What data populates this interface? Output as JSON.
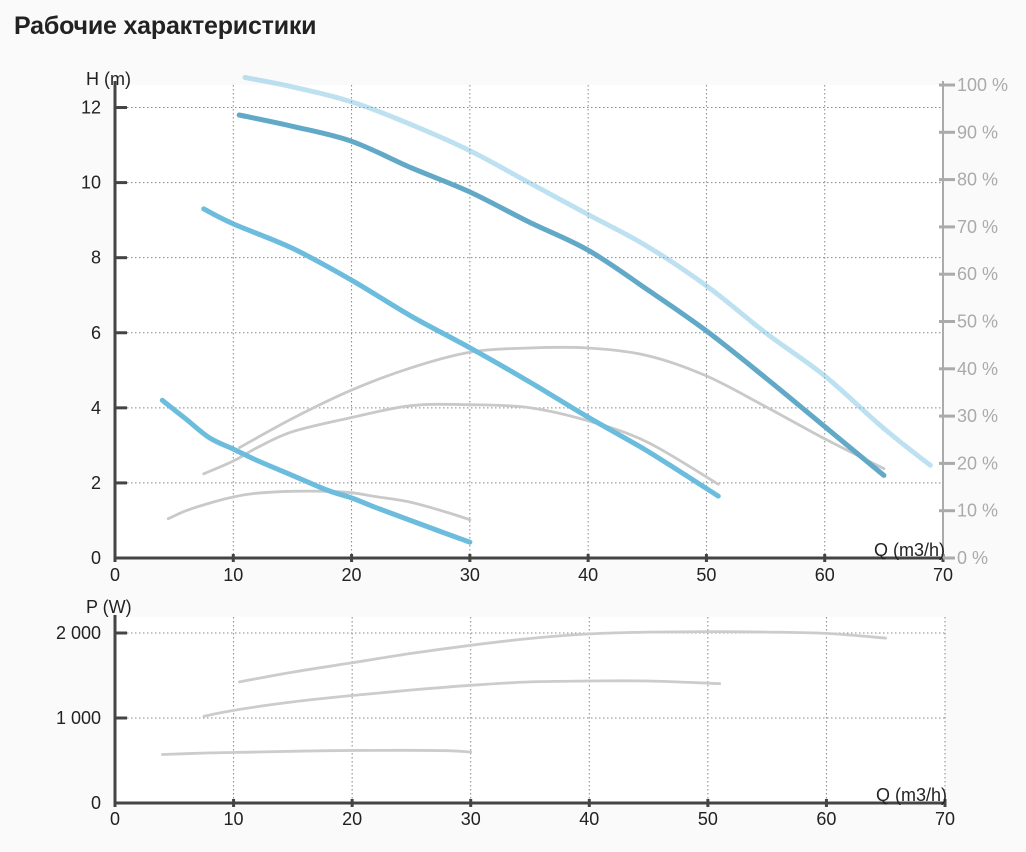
{
  "page": {
    "title": "Рабочие характеристики"
  },
  "colors": {
    "head_curve": "#6cbcdd",
    "head_curve_max": "#62a9c8",
    "efficiency_curve": "#c9c9c9",
    "power_curve": "#cccccc",
    "axis": "#444444",
    "efficiency_axis": "#aaaaaa"
  },
  "chart_data": [
    {
      "type": "line",
      "title": "",
      "xlabel": "Q (m3/h)",
      "ylabel": "H (m)",
      "y2label": "",
      "xlim": [
        0,
        70
      ],
      "ylim": [
        0,
        12.6
      ],
      "y2lim": [
        0,
        100
      ],
      "x_ticks": [
        "0",
        "10",
        "20",
        "30",
        "40",
        "50",
        "60",
        "70"
      ],
      "y_ticks": [
        "0",
        "2",
        "4",
        "6",
        "8",
        "10",
        "12"
      ],
      "y2_ticks": [
        "0 %",
        "10 %",
        "20 %",
        "30 %",
        "40 %",
        "50 %",
        "60 %",
        "70 %",
        "80 %",
        "90 %",
        "100 %"
      ],
      "grid": true,
      "head_series": [
        {
          "style": "head-curve-1",
          "x": [
            4,
            6,
            8,
            10,
            12,
            15,
            18,
            20,
            22,
            25,
            28,
            30
          ],
          "y": [
            4.2,
            3.7,
            3.2,
            2.9,
            2.6,
            2.2,
            1.8,
            1.6,
            1.35,
            1.0,
            0.65,
            0.42
          ]
        },
        {
          "style": "head-curve-2",
          "x": [
            7.5,
            10,
            15,
            20,
            25,
            30,
            35,
            40,
            45,
            51
          ],
          "y": [
            9.3,
            8.9,
            8.25,
            7.4,
            6.45,
            5.6,
            4.7,
            3.75,
            2.85,
            1.65
          ]
        },
        {
          "style": "head-curve-3",
          "x": [
            10.5,
            15,
            20,
            25,
            30,
            35,
            40,
            45,
            50,
            55,
            60,
            65
          ],
          "y": [
            11.8,
            11.5,
            11.1,
            10.4,
            9.75,
            8.95,
            8.2,
            7.15,
            6.05,
            4.8,
            3.5,
            2.2
          ]
        },
        {
          "style": "head-curve-max",
          "x": [
            11,
            15,
            20,
            25,
            30,
            35,
            40,
            45,
            50,
            55,
            60,
            65,
            69
          ],
          "y": [
            12.8,
            12.55,
            12.15,
            11.55,
            10.85,
            10.0,
            9.15,
            8.3,
            7.25,
            6.0,
            4.85,
            3.45,
            2.45
          ]
        }
      ],
      "efficiency_series": [
        {
          "style": "eff-curve-1",
          "x": [
            4.5,
            6,
            8,
            10,
            12,
            15,
            18,
            20,
            22,
            25,
            28,
            30
          ],
          "y": [
            8.3,
            10,
            11.6,
            12.9,
            13.7,
            14.1,
            14.1,
            13.8,
            13.0,
            11.8,
            9.7,
            8.1
          ]
        },
        {
          "style": "eff-curve-2",
          "x": [
            7.5,
            10,
            12,
            15,
            20,
            25,
            30,
            35,
            40,
            45,
            51
          ],
          "y": [
            17.8,
            20.5,
            23.3,
            26.7,
            29.7,
            32.2,
            32.4,
            31.8,
            29.0,
            24.5,
            15.6
          ]
        },
        {
          "style": "eff-curve-3",
          "x": [
            10.5,
            15,
            20,
            25,
            30,
            35,
            40,
            45,
            50,
            55,
            60,
            65
          ],
          "y": [
            23.3,
            29.5,
            35.5,
            40.2,
            43.5,
            44.4,
            44.4,
            42.8,
            38.5,
            32.0,
            25.2,
            18.9
          ]
        }
      ]
    },
    {
      "type": "line",
      "title": "",
      "xlabel": "Q (m3/h)",
      "ylabel": "P (W)",
      "xlim": [
        0,
        70
      ],
      "ylim": [
        0,
        2000
      ],
      "x_ticks": [
        "0",
        "10",
        "20",
        "30",
        "40",
        "50",
        "60",
        "70"
      ],
      "y_ticks": [
        "0",
        "1 000",
        "2 000"
      ],
      "grid": true,
      "series": [
        {
          "style": "power-curve-1",
          "x": [
            4,
            8,
            12,
            18,
            24,
            28,
            30
          ],
          "y": [
            570,
            590,
            600,
            615,
            620,
            615,
            600
          ]
        },
        {
          "style": "power-curve-2",
          "x": [
            7.5,
            10,
            15,
            20,
            25,
            30,
            35,
            40,
            45,
            51
          ],
          "y": [
            1020,
            1090,
            1190,
            1265,
            1330,
            1385,
            1425,
            1435,
            1435,
            1405
          ]
        },
        {
          "style": "power-curve-3",
          "x": [
            10.5,
            15,
            20,
            25,
            30,
            35,
            40,
            45,
            50,
            55,
            60,
            65
          ],
          "y": [
            1425,
            1540,
            1650,
            1760,
            1855,
            1935,
            1990,
            2010,
            2015,
            2010,
            1995,
            1940
          ]
        }
      ]
    }
  ]
}
